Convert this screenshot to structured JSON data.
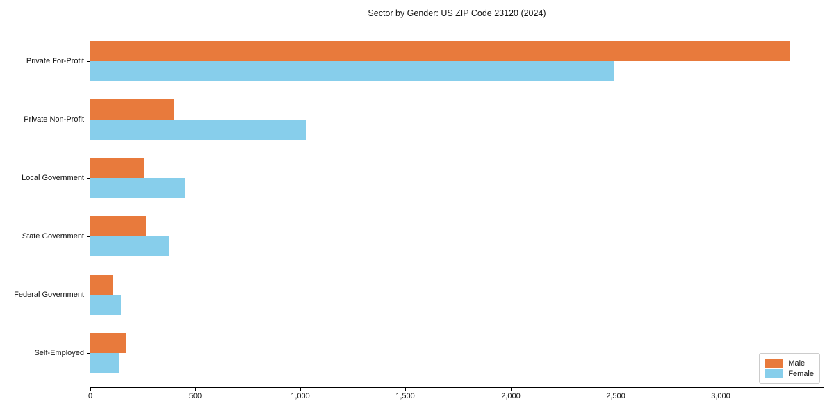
{
  "title": "Sector by Gender: US ZIP Code 23120 (2024)",
  "chart_data": {
    "type": "bar",
    "orientation": "horizontal",
    "title": "Sector by Gender: US ZIP Code 23120 (2024)",
    "categories": [
      "Private For-Profit",
      "Private Non-Profit",
      "Local Government",
      "State Government",
      "Federal Government",
      "Self-Employed"
    ],
    "series": [
      {
        "name": "Male",
        "color": "#e87a3c",
        "values": [
          3330,
          400,
          255,
          265,
          105,
          170
        ]
      },
      {
        "name": "Female",
        "color": "#87ceeb",
        "values": [
          2490,
          1030,
          450,
          375,
          145,
          135
        ]
      }
    ],
    "xlabel": "",
    "ylabel": "",
    "xlim": [
      0,
      3490
    ],
    "xticks": [
      0,
      500,
      1000,
      1500,
      2000,
      2500,
      3000
    ],
    "xtick_labels": [
      "0",
      "500",
      "1,000",
      "1,500",
      "2,000",
      "2,500",
      "3,000"
    ],
    "grid": false,
    "legend_position": "lower right",
    "frame": true
  }
}
